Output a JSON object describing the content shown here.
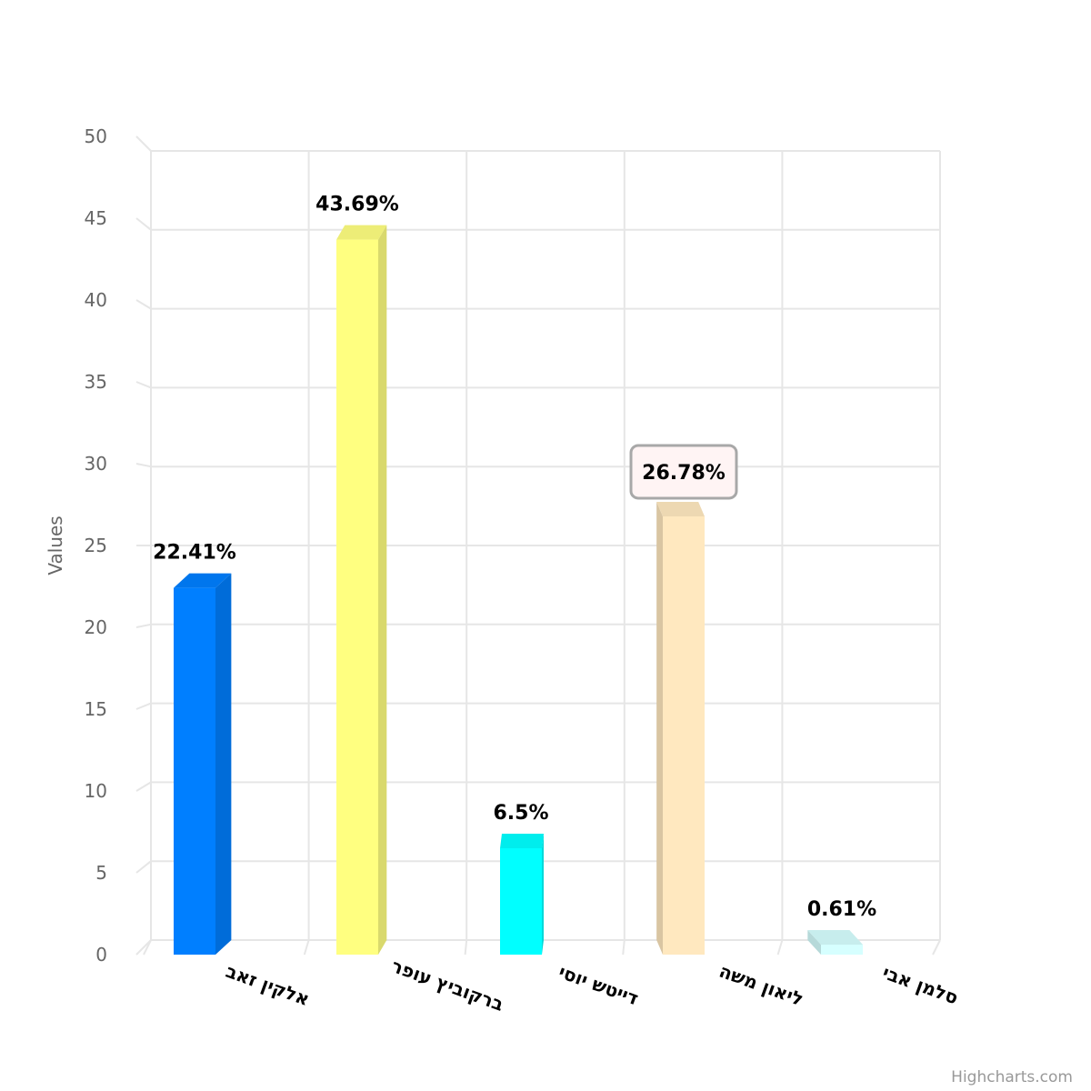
{
  "chart_data": {
    "type": "bar",
    "categories": [
      "אלקין זאב",
      "ברקוביץ עופר",
      "דייטש יוסי",
      "ליאון משה",
      "סלמן אבי"
    ],
    "values": [
      22.41,
      43.69,
      6.5,
      26.78,
      0.61
    ],
    "data_labels": [
      "22.41%",
      "43.69%",
      "6.5%",
      "26.78%",
      "0.61%"
    ],
    "highlighted_index": 3,
    "colors": [
      "#007FFF",
      "#FFFF80",
      "#00FFFF",
      "#FFE8BF",
      "#D6FFFF"
    ],
    "ylabel": "Values",
    "ylim": [
      0,
      50
    ],
    "yticks": [
      0,
      5,
      10,
      15,
      20,
      25,
      30,
      35,
      40,
      45,
      50
    ],
    "grid": true,
    "style": "3d-column"
  },
  "credit": "Highcharts.com"
}
